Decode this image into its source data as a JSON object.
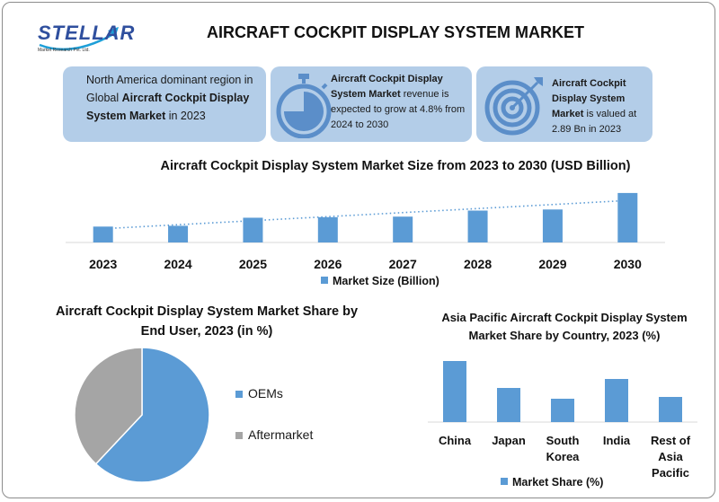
{
  "header": {
    "logo_text": "STELLAR",
    "logo_sub": "Market Research Pvt. Ltd.",
    "title": "AIRCRAFT COCKPIT DISPLAY SYSTEM MARKET"
  },
  "cards": [
    {
      "pre": "North America dominant region in Global ",
      "bold": "Aircraft Cockpit Display System Market",
      "post": " in 2023",
      "icon": "none"
    },
    {
      "bold": "Aircraft Cockpit Display System Market",
      "post": " revenue is expected to grow at 4.8% from 2024 to 2030",
      "icon": "stopwatch-icon"
    },
    {
      "bold": "Aircraft Cockpit Display System Market",
      "post": " is valued at 2.89 Bn in 2023",
      "icon": "target-icon"
    }
  ],
  "colors": {
    "bar": "#5b9bd5",
    "pie_main": "#5b9bd5",
    "pie_other": "#a5a5a5",
    "card": "#b3cde8",
    "trend": "#5b9bd5"
  },
  "chart_data": [
    {
      "type": "bar",
      "title": "Aircraft Cockpit Display System Market Size from 2023 to 2030 (USD Billion)",
      "categories": [
        "2023",
        "2024",
        "2025",
        "2026",
        "2027",
        "2028",
        "2029",
        "2030"
      ],
      "series": [
        {
          "name": "Market Size (Billion)",
          "values": [
            2.89,
            3.03,
            4.5,
            4.6,
            4.7,
            5.8,
            6.0,
            9.0
          ]
        }
      ],
      "trendline": "linear-dotted",
      "ylim": [
        0,
        9.8
      ],
      "grid": false,
      "legend": "bottom"
    },
    {
      "type": "pie",
      "title": "Aircraft Cockpit Display System Market Share by End User, 2023 (in %)",
      "labels": [
        "OEMs",
        "Aftermarket"
      ],
      "values": [
        62,
        38
      ],
      "legend": "right"
    },
    {
      "type": "bar",
      "title": "Asia Pacific Aircraft Cockpit Display System Market Share by Country, 2023 (%)",
      "categories": [
        "China",
        "Japan",
        "South Korea",
        "India",
        "Rest of Asia Pacific"
      ],
      "series": [
        {
          "name": "Market Share (%)",
          "values": [
            34,
            19,
            13,
            24,
            14
          ]
        }
      ],
      "ylim": [
        0,
        36
      ],
      "grid": false,
      "legend": "bottom"
    }
  ]
}
